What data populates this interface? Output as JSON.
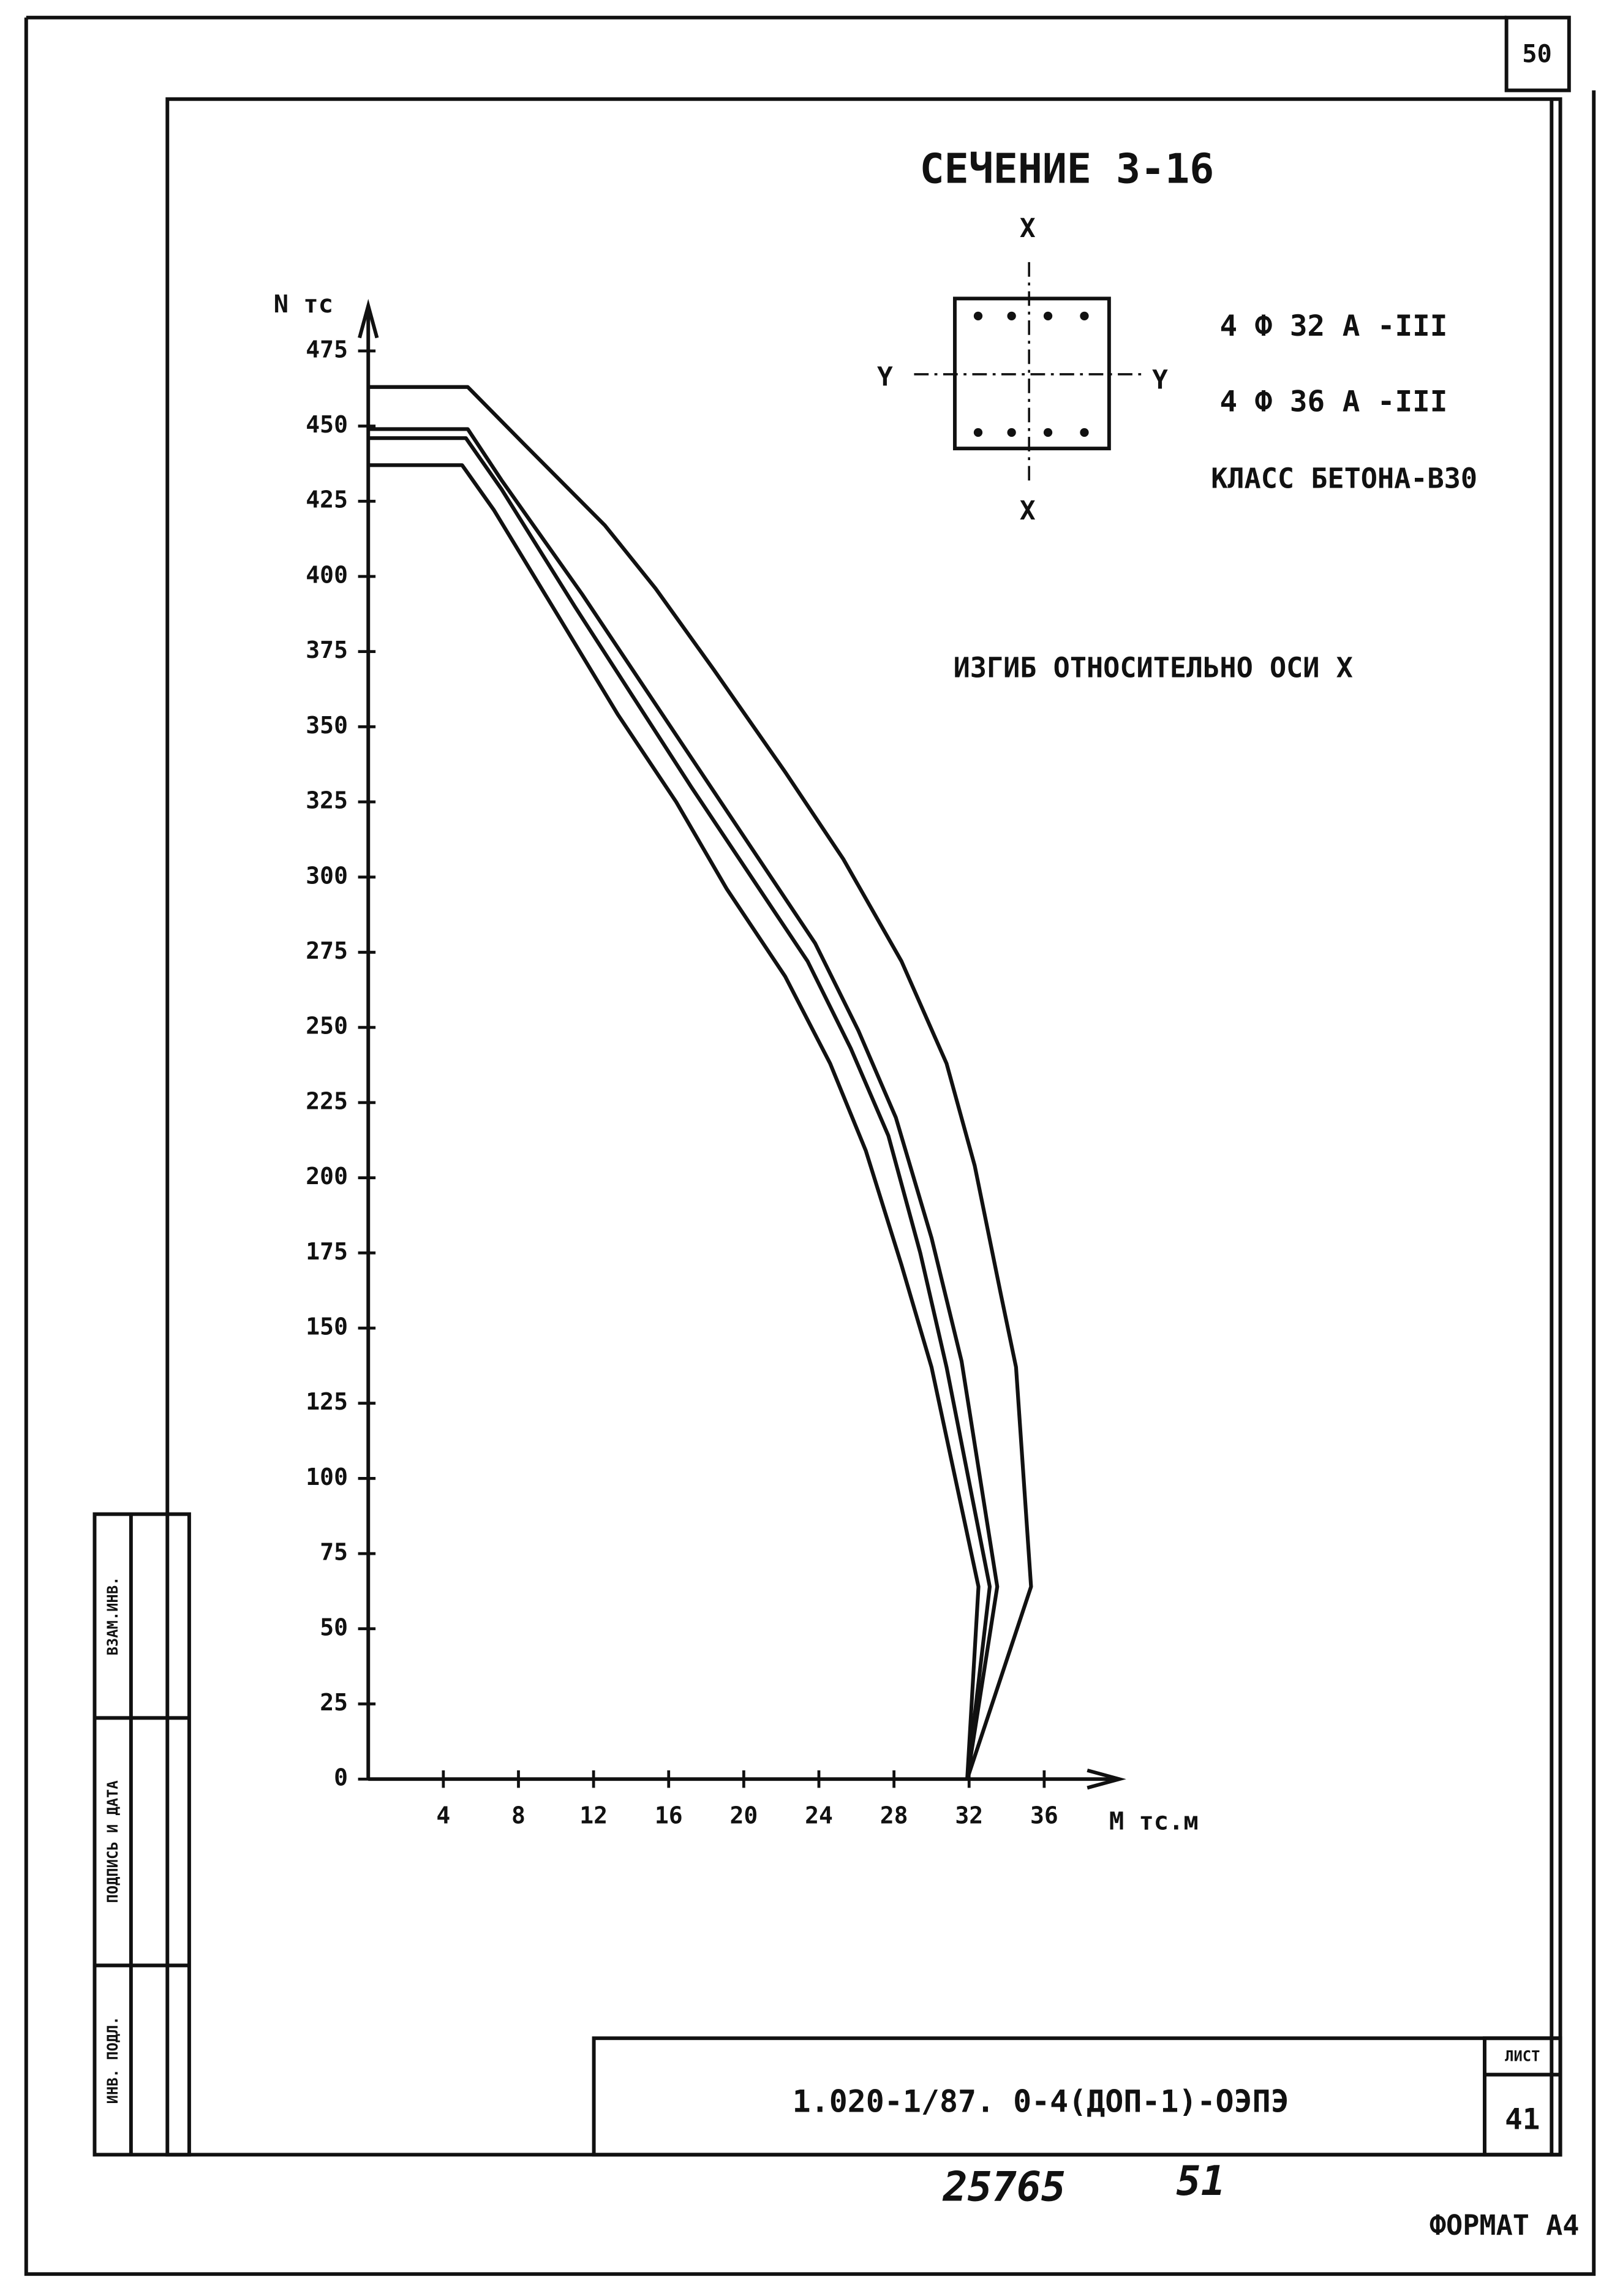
{
  "sheet_number": "50",
  "chart_data": {
    "type": "line",
    "title": "СЕЧЕНИЕ 3-16",
    "annotations": [
      "Х",
      "Х",
      "Y",
      "Y",
      "4 Ф 32 А -III",
      "4 Ф 36 А -III",
      "КЛАСС БЕТОНА-В30",
      "ИЗГИБ ОТНОСИТЕЛЬНО ОСИ Х"
    ],
    "x_label": "M тс.м",
    "y_label": "N тс",
    "xlim": [
      0,
      40
    ],
    "ylim": [
      0,
      490
    ],
    "xticks": [
      4,
      8,
      12,
      16,
      20,
      24,
      28,
      32,
      36
    ],
    "yticks": [
      0,
      25,
      50,
      75,
      100,
      125,
      150,
      175,
      200,
      225,
      250,
      275,
      300,
      325,
      350,
      375,
      400,
      425,
      450,
      475
    ],
    "series": [
      {
        "color": "#111111",
        "x": [
          0,
          5.3,
          8.3,
          12.6,
          15.3,
          18.4,
          22.2,
          25.3,
          28.4,
          30.8,
          32.3,
          33.7,
          34.5,
          35.3,
          31.9
        ],
        "values": [
          463,
          463,
          444,
          417,
          396,
          369,
          335,
          306,
          272,
          238,
          204,
          161,
          137,
          64,
          0
        ]
      },
      {
        "color": "#111111",
        "x": [
          0,
          5.3,
          7.1,
          11.4,
          14.5,
          17.6,
          20.7,
          23.8,
          26.1,
          28.1,
          30.0,
          31.6,
          33.5,
          31.9
        ],
        "values": [
          449,
          449,
          432,
          394,
          365,
          336,
          307,
          278,
          249,
          220,
          180,
          139,
          64,
          0
        ]
      },
      {
        "color": "#111111",
        "x": [
          0,
          5.2,
          7.1,
          11.0,
          14.1,
          17.2,
          20.3,
          23.4,
          25.7,
          27.7,
          29.4,
          30.8,
          33.1,
          31.9
        ],
        "values": [
          446,
          446,
          429,
          390,
          360,
          330,
          301,
          272,
          243,
          214,
          175,
          137,
          64,
          0
        ]
      },
      {
        "color": "#111111",
        "x": [
          0,
          5.0,
          6.7,
          10.2,
          13.3,
          16.4,
          19.1,
          22.2,
          24.6,
          26.5,
          28.4,
          30.0,
          32.5,
          31.9
        ],
        "values": [
          437,
          437,
          422,
          386,
          354,
          325,
          296,
          267,
          238,
          209,
          171,
          137,
          64,
          0
        ]
      }
    ]
  },
  "stamps": [
    "ВЗАМ.ИНВ.",
    "ПОДПИСЬ И ДАТА",
    "ИНВ. ПОДЛ."
  ],
  "title_block": {
    "code": "1.020-1/87. 0-4(ДОП-1)-ОЭПЭ",
    "sheet_label": "ЛИСТ",
    "sheet": "41"
  },
  "handwritten": [
    "25765",
    "51"
  ],
  "format": "ФОРМАТ А4"
}
